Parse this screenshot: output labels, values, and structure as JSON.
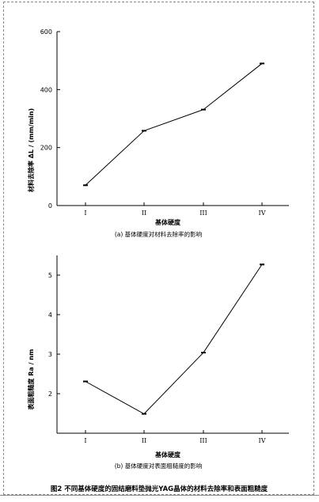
{
  "chart_data": [
    {
      "type": "line",
      "categories": [
        "I",
        "II",
        "III",
        "IV"
      ],
      "values": [
        70,
        258,
        331,
        490
      ],
      "xlabel": "基体硬度",
      "ylabel": "材料去除率    ΔL  / (mm/min)",
      "ylim": [
        0,
        600
      ],
      "yticks": [
        "0",
        "200",
        "400",
        "600"
      ],
      "subcaption": "(a)  基体硬度对材料去除率的影响",
      "grid": false
    },
    {
      "type": "line",
      "categories": [
        "I",
        "II",
        "III",
        "IV"
      ],
      "values": [
        2.31,
        1.49,
        3.04,
        5.27
      ],
      "xlabel": "基体硬度",
      "ylabel": "表面粗糙度    Ra / nm",
      "ylim": [
        1.0,
        5.5
      ],
      "yticks": [
        "2",
        "3",
        "4",
        "5"
      ],
      "subcaption": "(b)  基体硬度对表面粗糙度的影响",
      "grid": false
    }
  ],
  "figure_caption": "图2   不同基体硬度的固结磨料垫抛光YAG晶体的材料去除率和表面粗糙度"
}
